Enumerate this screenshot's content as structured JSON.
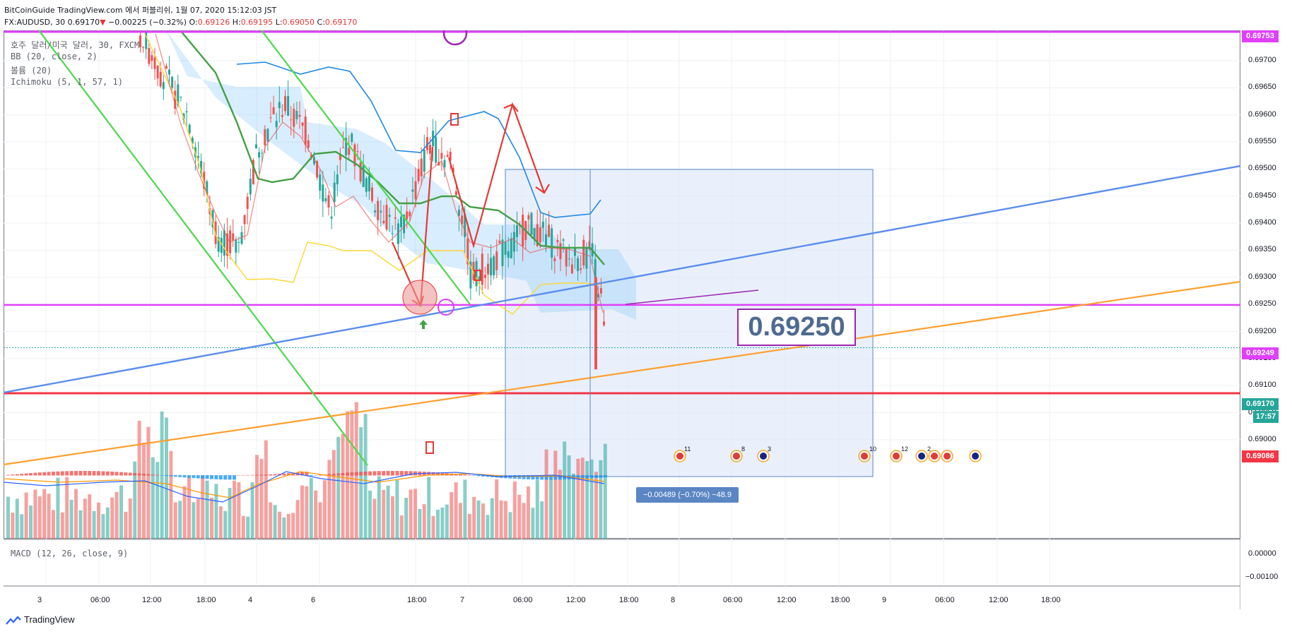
{
  "header": {
    "source_line": "BitCoinGuide TradingView.com 에서 퍼블리쉬, 1월 07, 2020 15:12:03 JST",
    "symbol": "FX:AUDUSD, 30",
    "last": "0.69170",
    "change_arrow": "▼",
    "change": "−0.00225 (−0.32%)",
    "open_label": "O:",
    "open": "0.69126",
    "high_label": "H:",
    "high": "0.69195",
    "low_label": "L:",
    "low": "0.69050",
    "close_label": "C:",
    "close": "0.69170"
  },
  "indicators": [
    "호주 달러/미국 달러, 30, FXCM",
    "BB (20, close, 2)",
    "볼륨 (20)",
    "Ichimoku (5, 1, 57, 1)"
  ],
  "macd_label": "MACD (12, 26, close, 9)",
  "price_axis": {
    "labels": [
      "0.69700",
      "0.69650",
      "0.69600",
      "0.69550",
      "0.69500",
      "0.69450",
      "0.69400",
      "0.69350",
      "0.69300",
      "0.69250",
      "0.69200",
      "0.69150",
      "0.69100",
      "0.69050",
      "0.69000"
    ],
    "tags": {
      "top": "0.69753",
      "level": "0.69249",
      "current": "0.69170",
      "countdown": "17:57",
      "support": "0.69086"
    },
    "macd_labels": [
      "0.00000",
      "−0.00100"
    ]
  },
  "time_axis": [
    "3",
    "06:00",
    "12:00",
    "18:00",
    "4",
    "6",
    "18:00",
    "7",
    "06:00",
    "12:00",
    "18:00",
    "8",
    "06:00",
    "12:00",
    "18:00",
    "9",
    "06:00",
    "12:00",
    "18:00"
  ],
  "annotations": {
    "big_price": "0.69250",
    "measure": "−0.00489 (−0.70%) −48.9"
  },
  "events": {
    "labels": [
      "11",
      "8",
      "3",
      "10",
      "12",
      "2"
    ]
  },
  "colors": {
    "up": "#26a69a",
    "down": "#ef5350",
    "magenta": "#e040fb",
    "purple": "#9c27b0",
    "support": "#f23645",
    "trend_blue": "#5b8def",
    "trend_orange": "#ff9f2e",
    "green_line": "#4cd94c",
    "cloud": "#2196f3"
  },
  "footer": {
    "brand": "TradingView"
  }
}
